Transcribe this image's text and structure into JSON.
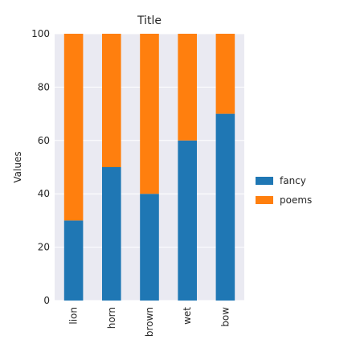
{
  "chart_data": {
    "type": "bar",
    "stacked": true,
    "title": "Title",
    "xlabel": "",
    "ylabel": "Values",
    "categories": [
      "lion",
      "horn",
      "brown",
      "wet",
      "bow"
    ],
    "series": [
      {
        "name": "fancy",
        "color": "#1f77b4",
        "values": [
          30,
          50,
          40,
          60,
          70
        ]
      },
      {
        "name": "poems",
        "color": "#ff7f0e",
        "values": [
          70,
          50,
          60,
          40,
          30
        ]
      }
    ],
    "ylim": [
      0,
      100
    ],
    "yticks": [
      0,
      20,
      40,
      60,
      80,
      100
    ],
    "grid": true,
    "legend_position": "right",
    "background_color": "#eaeaf2",
    "grid_color": "#ffffff"
  }
}
